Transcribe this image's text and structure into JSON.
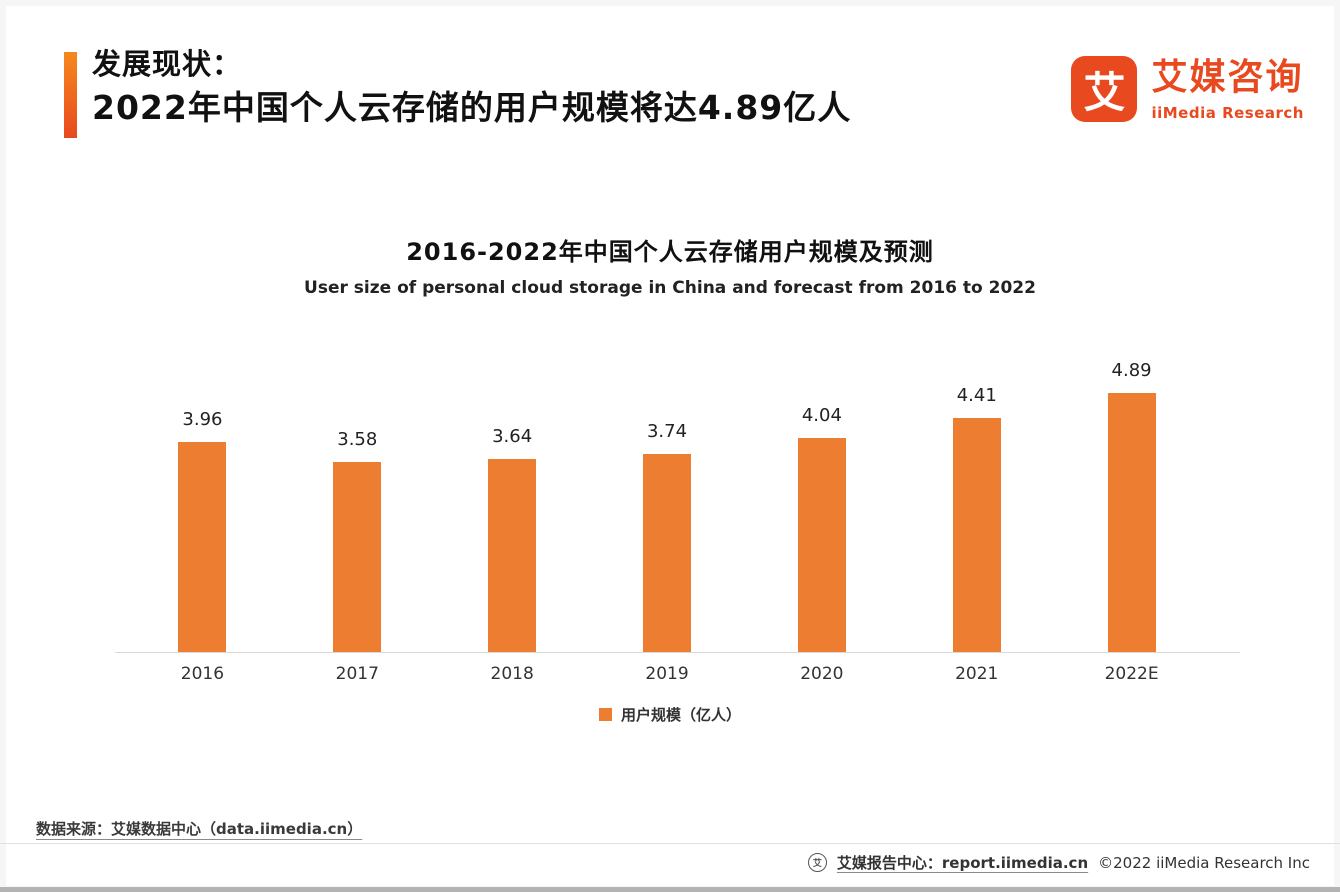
{
  "theme": {
    "brand_color": "#E8491F",
    "bar_color": "#ED7D31"
  },
  "header": {
    "title_line1": "发展现状：",
    "title_line2": "2022年中国个人云存储的用户规模将达4.89亿人",
    "logo": {
      "glyph": "艾",
      "name_cn": "艾媒咨询",
      "name_en": "iiMedia Research"
    }
  },
  "chart_data": {
    "type": "bar",
    "title": "2016-2022年中国个人云存储用户规模及预测",
    "subtitle": "User size of personal cloud storage in China and forecast from 2016 to 2022",
    "categories": [
      "2016",
      "2017",
      "2018",
      "2019",
      "2020",
      "2021",
      "2022E"
    ],
    "values": [
      3.96,
      3.58,
      3.64,
      3.74,
      4.04,
      4.41,
      4.89
    ],
    "series_name": "用户规模（亿人）",
    "bar_color": "#ED7D31",
    "ylabel": "",
    "xlabel": "",
    "ylim": [
      0,
      5.5
    ],
    "grid": false,
    "legend_position": "bottom"
  },
  "footer": {
    "source": "数据来源：艾媒数据中心（data.iimedia.cn）",
    "badge_glyph": "艾",
    "report_center": "艾媒报告中心：report.iimedia.cn",
    "copyright": "©2022 iiMedia Research Inc"
  }
}
